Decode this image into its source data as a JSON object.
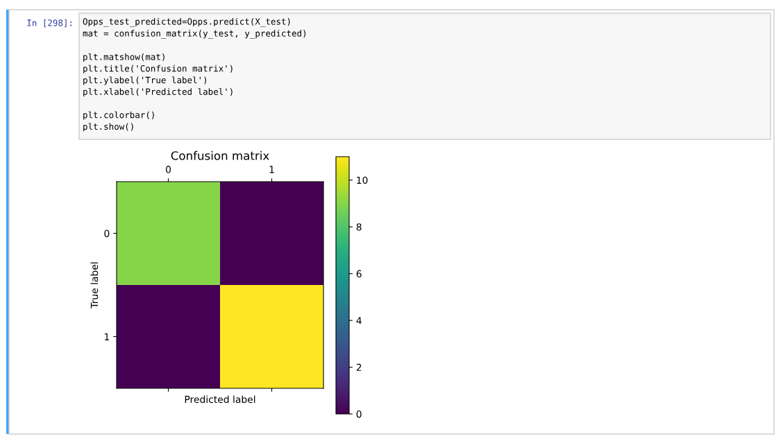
{
  "chart_data": {
    "type": "heatmap",
    "title": "Confusion matrix",
    "xlabel": "Predicted label",
    "ylabel": "True label",
    "categories": [
      "0",
      "1"
    ],
    "y_categories": [
      "0",
      "1"
    ],
    "cells": [
      [
        9,
        0
      ],
      [
        0,
        11
      ]
    ],
    "clim": [
      0,
      11
    ],
    "cticks": [
      0,
      2,
      4,
      6,
      8,
      10
    ],
    "annotations": [
      "In [298]:",
      "Opps_test_predicted=Opps.predict(X_test)\nmat = confusion_matrix(y_test, y_predicted)\n\nplt.matshow(mat)\nplt.title('Confusion matrix')\nplt.ylabel('True label')\nplt.xlabel('Predicted label')\n\nplt.colorbar()\nplt.show()"
    ]
  }
}
